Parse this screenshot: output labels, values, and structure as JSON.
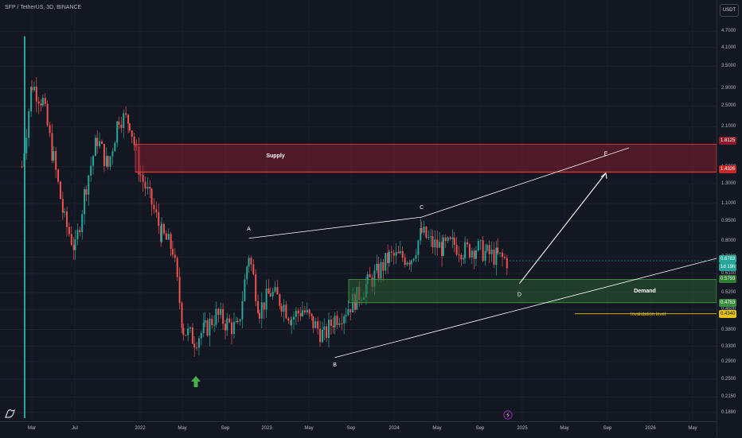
{
  "header": {
    "symbol_line": "SFP / TetherUS, 3D, BINANCE",
    "currency_button": "USDT"
  },
  "price_axis": {
    "ticks": [
      "4.7000",
      "4.1000",
      "3.5000",
      "2.9000",
      "2.5000",
      "2.1000",
      "1.5000",
      "1.3000",
      "1.1000",
      "0.9500",
      "0.8000",
      "0.7000",
      "0.6100",
      "0.5200",
      "0.4500",
      "0.3800",
      "0.3300",
      "0.2900",
      "0.2500",
      "0.2150",
      "0.1890"
    ],
    "supply_top_label": "1.8125",
    "supply_bottom_label": "1.4326",
    "last_price_label": "0.6783",
    "countdown_label": "1d 19h",
    "demand_top_label": "0.5793",
    "demand_bottom_label": "0.4763",
    "invalidation_label": "0.4340"
  },
  "time_axis": {
    "ticks": [
      "Mar",
      "Jul",
      "2022",
      "May",
      "Sep",
      "2023",
      "May",
      "Sep",
      "2024",
      "May",
      "Sep",
      "2025",
      "May",
      "Sep",
      "2026",
      "May"
    ]
  },
  "chart_data": {
    "type": "candlestick",
    "title": "SFP / TetherUS, 3D, BINANCE",
    "scale": "log",
    "ylim": [
      0.18,
      5.0
    ],
    "x": [
      "2021-02",
      "2021-03",
      "2021-04",
      "2021-05",
      "2021-06",
      "2021-07",
      "2021-08",
      "2021-09",
      "2021-10",
      "2021-11",
      "2021-12",
      "2022-01",
      "2022-02",
      "2022-03",
      "2022-04",
      "2022-05",
      "2022-06",
      "2022-07",
      "2022-08",
      "2022-09",
      "2022-10",
      "2022-11",
      "2022-12",
      "2023-01",
      "2023-02",
      "2023-03",
      "2023-04",
      "2023-05",
      "2023-06",
      "2023-07",
      "2023-08",
      "2023-09",
      "2023-10",
      "2023-11",
      "2023-12",
      "2024-01",
      "2024-02",
      "2024-03",
      "2024-04",
      "2024-05",
      "2024-06",
      "2024-07",
      "2024-08",
      "2024-09",
      "2024-10",
      "2024-11"
    ],
    "close": [
      1.5,
      3.0,
      2.6,
      1.6,
      0.95,
      0.75,
      1.3,
      1.9,
      1.5,
      2.3,
      2.2,
      1.4,
      1.1,
      0.85,
      0.75,
      0.38,
      0.35,
      0.38,
      0.43,
      0.4,
      0.38,
      0.72,
      0.45,
      0.52,
      0.48,
      0.42,
      0.45,
      0.4,
      0.36,
      0.42,
      0.45,
      0.5,
      0.56,
      0.62,
      0.7,
      0.7,
      0.7,
      0.86,
      0.78,
      0.76,
      0.78,
      0.74,
      0.76,
      0.72,
      0.7,
      0.6783
    ],
    "zones": [
      {
        "name": "Supply",
        "top": 1.8125,
        "bottom": 1.4326,
        "color": "#7f1d2c"
      },
      {
        "name": "Demand",
        "top": 0.5793,
        "bottom": 0.4763,
        "color": "#2e5f33"
      }
    ],
    "invalidation": {
      "name": "Invalidation level",
      "value": 0.434,
      "color": "#e5c11a"
    },
    "wave_points": [
      {
        "name": "A",
        "date": "2022-11",
        "price": 0.82
      },
      {
        "name": "B",
        "date": "2023-07",
        "price": 0.3
      },
      {
        "name": "C",
        "date": "2024-03",
        "price": 0.98
      },
      {
        "name": "D",
        "date": "2024-12",
        "price": 0.56
      },
      {
        "name": "E",
        "date": "2025-08",
        "price": 1.5
      }
    ],
    "colors": {
      "up": "#26a69a",
      "down": "#ef5350",
      "background": "#131722",
      "trendline": "#ffffff",
      "last_price": "#26a69a"
    }
  },
  "chart_labels": {
    "supply": "Supply",
    "demand": "Demand",
    "invalidation": "Invalidation level",
    "a": "A",
    "b": "B",
    "c": "C",
    "d": "D",
    "e": "E"
  },
  "icons": {
    "logo": "tradingview-logo-icon",
    "marker": "green-arrow-up-icon",
    "event": "lightning-event-icon"
  }
}
